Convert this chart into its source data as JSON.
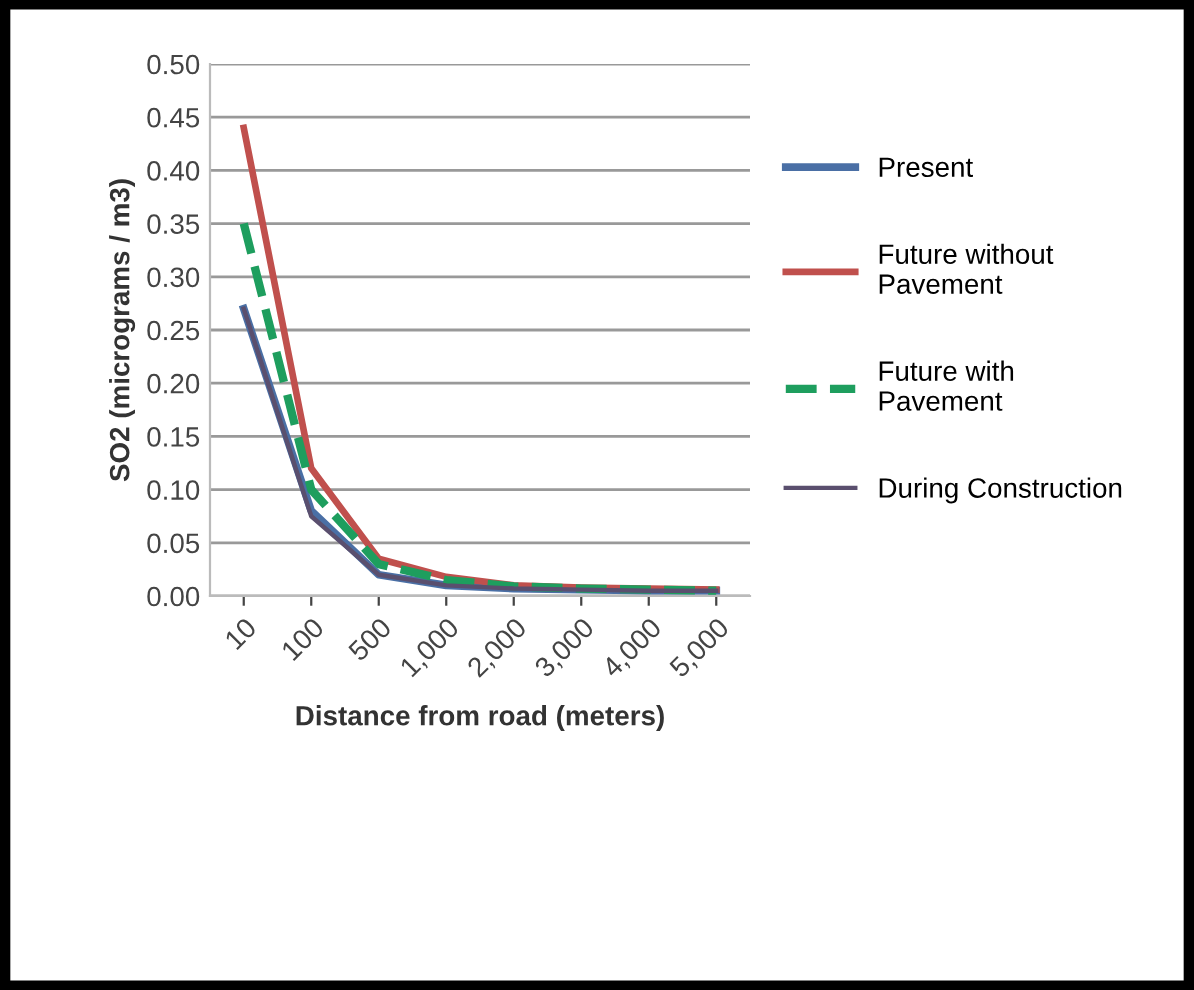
{
  "chart_data": {
    "type": "line",
    "xlabel": "Distance from road (meters)",
    "ylabel": "SO2 (micrograms / m3)",
    "categories": [
      "10",
      "100",
      "500",
      "1,000",
      "2,000",
      "3,000",
      "4,000",
      "5,000"
    ],
    "series": [
      {
        "name": "Present",
        "color": "#4a6fa5",
        "values": [
          0.27,
          0.08,
          0.02,
          0.01,
          0.007,
          0.006,
          0.005,
          0.005
        ]
      },
      {
        "name": "Future without\nPavement",
        "color": "#c0504d",
        "values": [
          0.44,
          0.12,
          0.035,
          0.018,
          0.01,
          0.008,
          0.007,
          0.006
        ]
      },
      {
        "name": "Future with\nPavement",
        "color": "#1e9e5e",
        "values": [
          0.35,
          0.1,
          0.03,
          0.015,
          0.009,
          0.007,
          0.006,
          0.005
        ],
        "line_style": "dashed"
      },
      {
        "name": "During Construction",
        "color": "#5a4f6e",
        "values": [
          0.27,
          0.075,
          0.02,
          0.01,
          0.007,
          0.006,
          0.005,
          0.005
        ]
      }
    ],
    "ylim": [
      0,
      0.5
    ],
    "yticks": [
      {
        "value": 0,
        "label": "0.00"
      },
      {
        "value": 0.05,
        "label": "0.05"
      },
      {
        "value": 0.1,
        "label": "0.10"
      },
      {
        "value": 0.15,
        "label": "0.15"
      },
      {
        "value": 0.2,
        "label": "0.20"
      },
      {
        "value": 0.25,
        "label": "0.25"
      },
      {
        "value": 0.3,
        "label": "0.30"
      },
      {
        "value": 0.35,
        "label": "0.35"
      },
      {
        "value": 0.4,
        "label": "0.40"
      },
      {
        "value": 0.45,
        "label": "0.45"
      },
      {
        "value": 0.5,
        "label": "0.50"
      }
    ],
    "grid": "y",
    "legend": "right",
    "marker": "none",
    "line_style": "solid"
  }
}
